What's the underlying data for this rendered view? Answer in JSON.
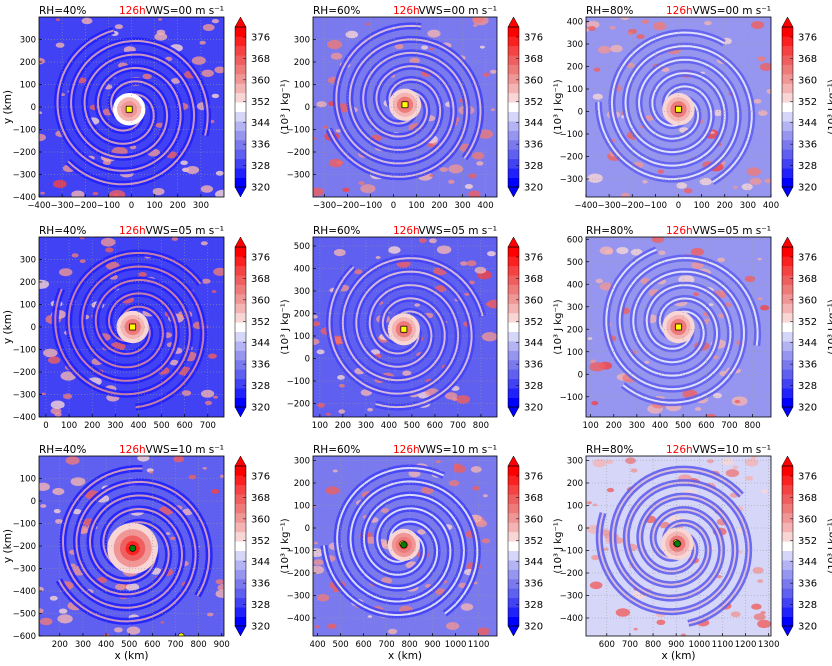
{
  "colorbar": {
    "ticks": [
      "376",
      "368",
      "360",
      "352",
      "344",
      "336",
      "328",
      "320"
    ],
    "unit_label": "(10³ J kg⁻¹)",
    "levels": [
      "#0000ff",
      "#2121fb",
      "#4242f5",
      "#5f5ff0",
      "#7a7aee",
      "#9696f0",
      "#b4b4f4",
      "#d6d6f8",
      "#ffffff",
      "#f8d6d6",
      "#f4b4b4",
      "#f09696",
      "#ee7a7a",
      "#f05f5f",
      "#f54242",
      "#fb2121",
      "#ff0000"
    ]
  },
  "chart_data": [
    {
      "type": "heatmap",
      "panel": 1,
      "rh": "RH=40%",
      "time": "126h",
      "vws": "VWS=00 m s⁻¹",
      "xlabel": "",
      "ylabel": "y (km)",
      "xticks": [
        "−400",
        "−300",
        "−200",
        "−100",
        "0",
        "100",
        "200",
        "300"
      ],
      "yticks": [
        "300",
        "200",
        "100",
        "0",
        "−100",
        "−200",
        "−300",
        "−400"
      ],
      "xlim": [
        -400,
        400
      ],
      "ylim": [
        -400,
        400
      ],
      "center": {
        "x": -10,
        "y": -10,
        "color": "#ffff00"
      },
      "core": 0.6,
      "ring": 0.55,
      "bg": 0.3
    },
    {
      "type": "heatmap",
      "panel": 2,
      "rh": "RH=60%",
      "time": "126h",
      "vws": "VWS=00 m s⁻¹",
      "xlabel": "",
      "ylabel": "",
      "xticks": [
        "−300",
        "−200",
        "−100",
        "0",
        "100",
        "200",
        "300",
        "400"
      ],
      "yticks": [
        "300",
        "200",
        "100",
        "0",
        "−100",
        "−200",
        "−300"
      ],
      "xlim": [
        -350,
        450
      ],
      "ylim": [
        -400,
        400
      ],
      "center": {
        "x": 50,
        "y": 10,
        "color": "#ffff00"
      },
      "core": 0.7,
      "ring": 0.45,
      "bg": 0.45
    },
    {
      "type": "heatmap",
      "panel": 3,
      "rh": "RH=80%",
      "time": "126h",
      "vws": "VWS=00 m s⁻¹",
      "xlabel": "",
      "ylabel": "",
      "xticks": [
        "−400",
        "−300",
        "−200",
        "−100",
        "0",
        "100",
        "200",
        "300",
        "400"
      ],
      "yticks": [
        "400",
        "300",
        "200",
        "100",
        "0",
        "−100",
        "−200",
        "−300"
      ],
      "xlim": [
        -400,
        400
      ],
      "ylim": [
        -380,
        420
      ],
      "center": {
        "x": 0,
        "y": 10,
        "color": "#ffff00"
      },
      "core": 0.7,
      "ring": 0.4,
      "bg": 0.65
    },
    {
      "type": "heatmap",
      "panel": 4,
      "rh": "RH=40%",
      "time": "126h",
      "vws": "VWS=05 m s⁻¹",
      "xlabel": "",
      "ylabel": "y (km)",
      "xticks": [
        "0",
        "100",
        "200",
        "300",
        "400",
        "500",
        "600",
        "700"
      ],
      "yticks": [
        "300",
        "200",
        "100",
        "0",
        "−100",
        "−200",
        "−300",
        "−400"
      ],
      "xlim": [
        -30,
        770
      ],
      "ylim": [
        -400,
        400
      ],
      "center": {
        "x": 375,
        "y": 0,
        "color": "#ffff00"
      },
      "core": 0.65,
      "ring": 0.6,
      "bg": 0.3
    },
    {
      "type": "heatmap",
      "panel": 5,
      "rh": "RH=60%",
      "time": "126h",
      "vws": "VWS=05 m s⁻¹",
      "xlabel": "",
      "ylabel": "",
      "xticks": [
        "100",
        "200",
        "300",
        "400",
        "500",
        "600",
        "700",
        "800"
      ],
      "yticks": [
        "500",
        "400",
        "300",
        "200",
        "100",
        "0",
        "−100",
        "−200"
      ],
      "xlim": [
        70,
        870
      ],
      "ylim": [
        -260,
        540
      ],
      "center": {
        "x": 465,
        "y": 130,
        "color": "#ffff00"
      },
      "core": 0.65,
      "ring": 0.45,
      "bg": 0.4
    },
    {
      "type": "heatmap",
      "panel": 6,
      "rh": "RH=80%",
      "time": "126h",
      "vws": "VWS=05 m s⁻¹",
      "xlabel": "",
      "ylabel": "",
      "xticks": [
        "100",
        "200",
        "300",
        "400",
        "500",
        "600",
        "700",
        "800"
      ],
      "yticks": [
        "600",
        "500",
        "400",
        "300",
        "200",
        "100",
        "0",
        "−100"
      ],
      "xlim": [
        80,
        880
      ],
      "ylim": [
        -190,
        610
      ],
      "center": {
        "x": 480,
        "y": 210,
        "color": "#ffff00"
      },
      "core": 0.65,
      "ring": 0.4,
      "bg": 0.65
    },
    {
      "type": "heatmap",
      "panel": 7,
      "rh": "RH=40%",
      "time": "126h",
      "vws": "VWS=10 m s⁻¹",
      "xlabel": "x (km)",
      "ylabel": "y (km)",
      "xticks": [
        "200",
        "300",
        "400",
        "500",
        "600",
        "700",
        "800",
        "900"
      ],
      "yticks": [
        "100",
        "0",
        "−100",
        "−200",
        "−300",
        "−400",
        "−500",
        "−600"
      ],
      "xlim": [
        110,
        910
      ],
      "ylim": [
        -600,
        200
      ],
      "center": {
        "x": 515,
        "y": -210,
        "color": "#008000"
      },
      "extra_center": {
        "x": 725,
        "y": -600,
        "color": "#ffff00"
      },
      "core": 0.95,
      "ring": 0.55,
      "bg": 0.35
    },
    {
      "type": "heatmap",
      "panel": 8,
      "rh": "RH=60%",
      "time": "126h",
      "vws": "VWS=10 m s⁻¹",
      "xlabel": "x (km)",
      "ylabel": "",
      "xticks": [
        "400",
        "500",
        "600",
        "700",
        "800",
        "900",
        "1000",
        "1100"
      ],
      "yticks": [
        "300",
        "200",
        "100",
        "0",
        "−100",
        "−200",
        "−300",
        "−400"
      ],
      "xlim": [
        380,
        1180
      ],
      "ylim": [
        -480,
        320
      ],
      "center": {
        "x": 775,
        "y": -75,
        "color": "#008000"
      },
      "extra_center": {
        "x": 770,
        "y": -70,
        "color": "#ffff00"
      },
      "core": 0.8,
      "ring": 0.4,
      "bg": 0.5
    },
    {
      "type": "heatmap",
      "panel": 9,
      "rh": "RH=80%",
      "time": "126h",
      "vws": "VWS=10 m s⁻¹",
      "xlabel": "x (km)",
      "ylabel": "",
      "xticks": [
        "600",
        "700",
        "800",
        "900",
        "1000",
        "1100",
        "1200",
        "1300"
      ],
      "yticks": [
        "300",
        "200",
        "100",
        "0",
        "−100",
        "−200",
        "−300",
        "−400"
      ],
      "xlim": [
        510,
        1310
      ],
      "ylim": [
        -480,
        320
      ],
      "center": {
        "x": 905,
        "y": -70,
        "color": "#008000"
      },
      "extra_center": {
        "x": 900,
        "y": -65,
        "color": "#ffff00"
      },
      "core": 0.75,
      "ring": 0.45,
      "bg": 0.85
    }
  ]
}
